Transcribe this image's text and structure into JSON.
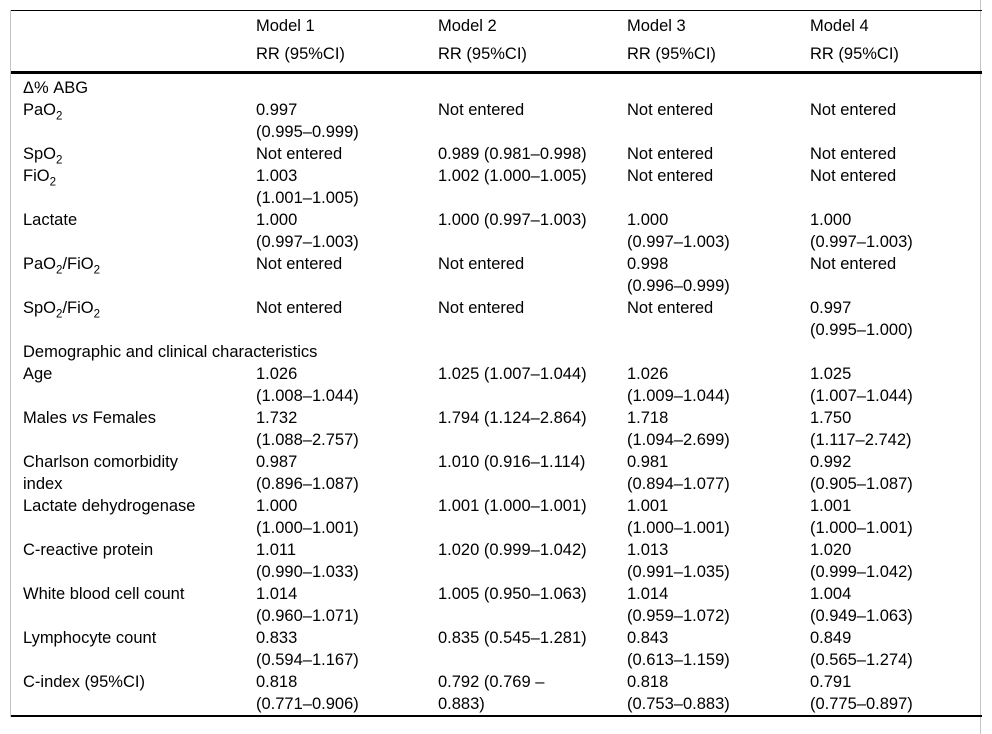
{
  "table": {
    "columns": [
      {
        "title": "Model 1",
        "subtitle": "RR (95%CI)"
      },
      {
        "title": "Model 2",
        "subtitle": "RR (95%CI)"
      },
      {
        "title": "Model 3",
        "subtitle": "RR (95%CI)"
      },
      {
        "title": "Model 4",
        "subtitle": "RR (95%CI)"
      }
    ],
    "rows": [
      {
        "type": "section",
        "label": "Δ% ABG"
      },
      {
        "type": "data",
        "label": "PaO~2~",
        "values": [
          "0.997\n(0.995–0.999)",
          "Not entered",
          "Not entered",
          "Not entered"
        ]
      },
      {
        "type": "data",
        "label": "SpO~2~",
        "values": [
          "Not entered",
          "0.989 (0.981–0.998)",
          "Not entered",
          "Not entered"
        ]
      },
      {
        "type": "data",
        "label": "FiO~2~",
        "values": [
          "1.003\n(1.001–1.005)",
          "1.002 (1.000–1.005)",
          "Not entered",
          "Not entered"
        ]
      },
      {
        "type": "data",
        "label": "Lactate",
        "values": [
          "1.000\n(0.997–1.003)",
          "1.000 (0.997–1.003)",
          "1.000\n(0.997–1.003)",
          "1.000\n(0.997–1.003)"
        ]
      },
      {
        "type": "data",
        "label": "PaO~2~/FiO~2~",
        "values": [
          "Not entered",
          "Not entered",
          "0.998\n(0.996–0.999)",
          "Not entered"
        ]
      },
      {
        "type": "data",
        "label": "SpO~2~/FiO~2~",
        "values": [
          "Not entered",
          "Not entered",
          "Not entered",
          "0.997\n(0.995–1.000)"
        ]
      },
      {
        "type": "section",
        "label": "Demographic and clinical characteristics"
      },
      {
        "type": "data",
        "label": "Age",
        "values": [
          "1.026\n(1.008–1.044)",
          "1.025 (1.007–1.044)",
          "1.026\n(1.009–1.044)",
          "1.025\n(1.007–1.044)"
        ]
      },
      {
        "type": "data",
        "label": "Males *vs* Females",
        "values": [
          "1.732\n(1.088–2.757)",
          "1.794 (1.124–2.864)",
          "1.718\n(1.094–2.699)",
          "1.750\n(1.117–2.742)"
        ]
      },
      {
        "type": "data",
        "label": "Charlson comorbidity\nindex",
        "values": [
          "0.987\n(0.896–1.087)",
          "1.010 (0.916–1.114)",
          "0.981\n(0.894–1.077)",
          "0.992\n(0.905–1.087)"
        ]
      },
      {
        "type": "data",
        "label": "Lactate dehydrogenase",
        "values": [
          "1.000\n(1.000–1.001)",
          "1.001 (1.000–1.001)",
          "1.001\n(1.000–1.001)",
          "1.001\n(1.000–1.001)"
        ]
      },
      {
        "type": "data",
        "label": "C-reactive protein",
        "values": [
          "1.011\n(0.990–1.033)",
          "1.020 (0.999–1.042)",
          "1.013\n(0.991–1.035)",
          "1.020\n(0.999–1.042)"
        ]
      },
      {
        "type": "data",
        "label": "White blood cell count",
        "values": [
          "1.014\n(0.960–1.071)",
          "1.005 (0.950–1.063)",
          "1.014\n(0.959–1.072)",
          "1.004\n(0.949–1.063)"
        ]
      },
      {
        "type": "data",
        "label": "Lymphocyte count",
        "values": [
          "0.833\n(0.594–1.167)",
          "0.835 (0.545–1.281)",
          "0.843\n(0.613–1.159)",
          "0.849\n(0.565–1.274)"
        ]
      },
      {
        "type": "data",
        "label": "C-index (95%CI)",
        "values": [
          "0.818\n(0.771–0.906)",
          "0.792 (0.769 –\n0.883)",
          "0.818\n(0.753–0.883)",
          "0.791\n(0.775–0.897)"
        ]
      }
    ]
  },
  "colors": {
    "rule": "#000000",
    "frame": "#c4c4c4",
    "text": "#000000",
    "background": "#ffffff"
  }
}
